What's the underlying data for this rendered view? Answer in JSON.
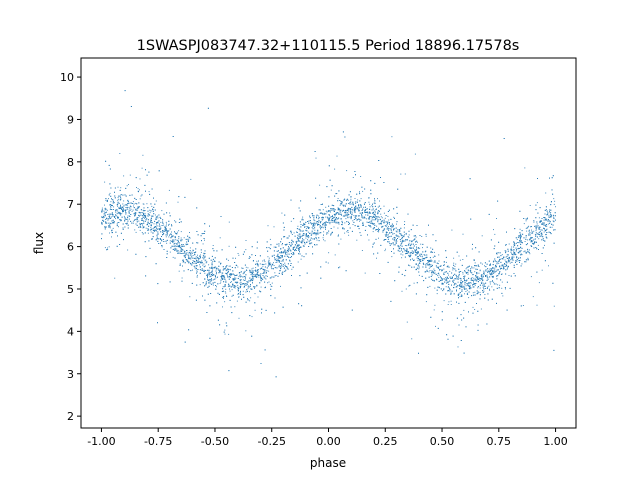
{
  "chart_data": {
    "type": "scatter",
    "title": "1SWASPJ083747.32+110115.5 Period 18896.17578s",
    "xlabel": "phase",
    "ylabel": "flux",
    "xlim": [
      -1.09,
      1.09
    ],
    "ylim": [
      1.72,
      10.45
    ],
    "xticks": [
      "-1.00",
      "-0.75",
      "-0.50",
      "-0.25",
      "0.00",
      "0.25",
      "0.50",
      "0.75",
      "1.00"
    ],
    "yticks": [
      "2",
      "3",
      "4",
      "5",
      "6",
      "7",
      "8",
      "9",
      "10"
    ],
    "grid": false,
    "marker_color": "#1f77b4",
    "approx_binned_mean": {
      "x": [
        -1.0,
        -0.9,
        -0.8,
        -0.7,
        -0.6,
        -0.5,
        -0.4,
        -0.3,
        -0.2,
        -0.1,
        0.0,
        0.1,
        0.2,
        0.3,
        0.4,
        0.5,
        0.6,
        0.7,
        0.8,
        0.9,
        1.0
      ],
      "y": [
        6.69,
        6.85,
        6.69,
        6.26,
        5.74,
        5.31,
        5.15,
        5.31,
        5.74,
        6.26,
        6.69,
        6.85,
        6.69,
        6.26,
        5.74,
        5.31,
        5.15,
        5.31,
        5.74,
        6.26,
        6.69
      ]
    }
  }
}
